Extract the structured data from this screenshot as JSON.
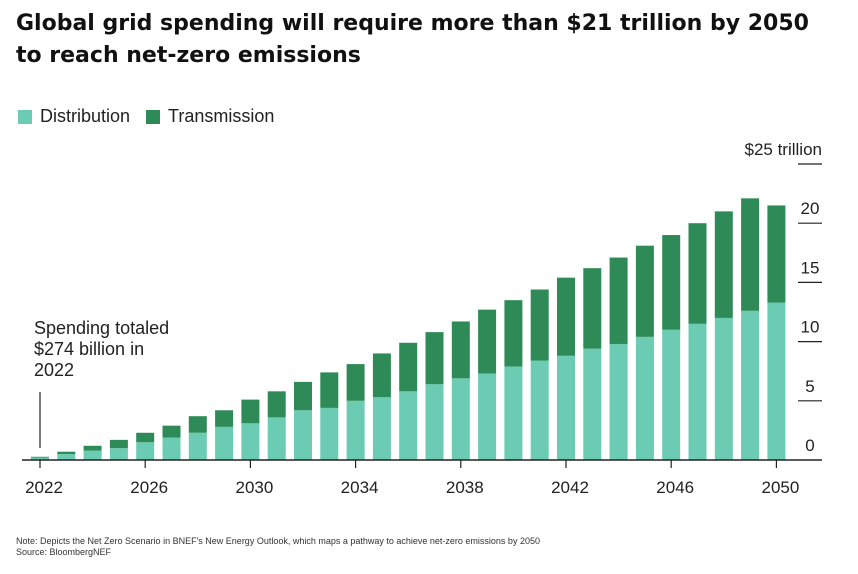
{
  "chart_data": {
    "type": "bar",
    "stacked": true,
    "title": "Global grid spending will require more than $21 trillion by 2050 to reach net-zero emissions",
    "y_unit_label": "$25 trillion",
    "ylim": [
      0,
      25
    ],
    "y_ticks": [
      0,
      5,
      10,
      15,
      20,
      25
    ],
    "y_tick_labels": [
      "0",
      "5",
      "10",
      "15",
      "20",
      "$25 trillion"
    ],
    "x_tick_labels": [
      "2022",
      "2026",
      "2030",
      "2034",
      "2038",
      "2042",
      "2046",
      "2050"
    ],
    "categories": [
      "2022",
      "2023",
      "2024",
      "2025",
      "2026",
      "2027",
      "2028",
      "2029",
      "2030",
      "2031",
      "2032",
      "2033",
      "2034",
      "2035",
      "2036",
      "2037",
      "2038",
      "2039",
      "2040",
      "2041",
      "2042",
      "2043",
      "2044",
      "2045",
      "2046",
      "2047",
      "2048",
      "2049",
      "2050"
    ],
    "legend_position": "top-left",
    "series": [
      {
        "name": "Distribution",
        "color": "#6ccbb3",
        "values": [
          0.2,
          0.5,
          0.8,
          1.0,
          1.5,
          1.9,
          2.3,
          2.8,
          3.1,
          3.6,
          4.2,
          4.4,
          5.0,
          5.3,
          5.8,
          6.4,
          6.9,
          7.3,
          7.9,
          8.4,
          8.8,
          9.4,
          9.8,
          10.4,
          11.0,
          11.5,
          12.0,
          12.6,
          13.3
        ]
      },
      {
        "name": "Transmission",
        "color": "#2e8b57",
        "values": [
          0.07,
          0.2,
          0.4,
          0.7,
          0.8,
          1.0,
          1.4,
          1.4,
          2.0,
          2.2,
          2.4,
          3.0,
          3.1,
          3.7,
          4.1,
          4.4,
          4.8,
          5.4,
          5.6,
          6.0,
          6.6,
          6.8,
          7.3,
          7.7,
          8.0,
          8.5,
          9.0,
          9.5,
          8.2
        ]
      }
    ],
    "annotation": {
      "text": "Spending totaled $274 billion in 2022",
      "lines": [
        "Spending totaled",
        "$274 billion in",
        "2022"
      ],
      "target_category": "2022"
    },
    "note": "Note: Depicts the Net Zero Scenario in BNEF's New Energy Outlook, which maps a pathway to achieve net-zero emissions by 2050",
    "source": "Source: BloombergNEF"
  }
}
